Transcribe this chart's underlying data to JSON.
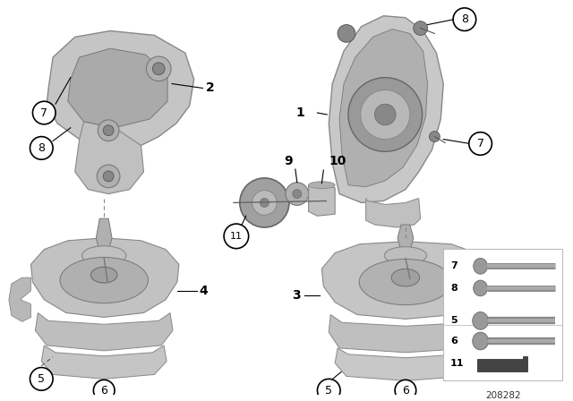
{
  "bg_color": "#ffffff",
  "part_number": "208282",
  "circle_color": "#000000",
  "circle_fill": "#ffffff",
  "part_fill": "#c8c8c8",
  "part_edge": "#888888",
  "dark_fill": "#a0a0a0",
  "bolt_color": "#909090"
}
